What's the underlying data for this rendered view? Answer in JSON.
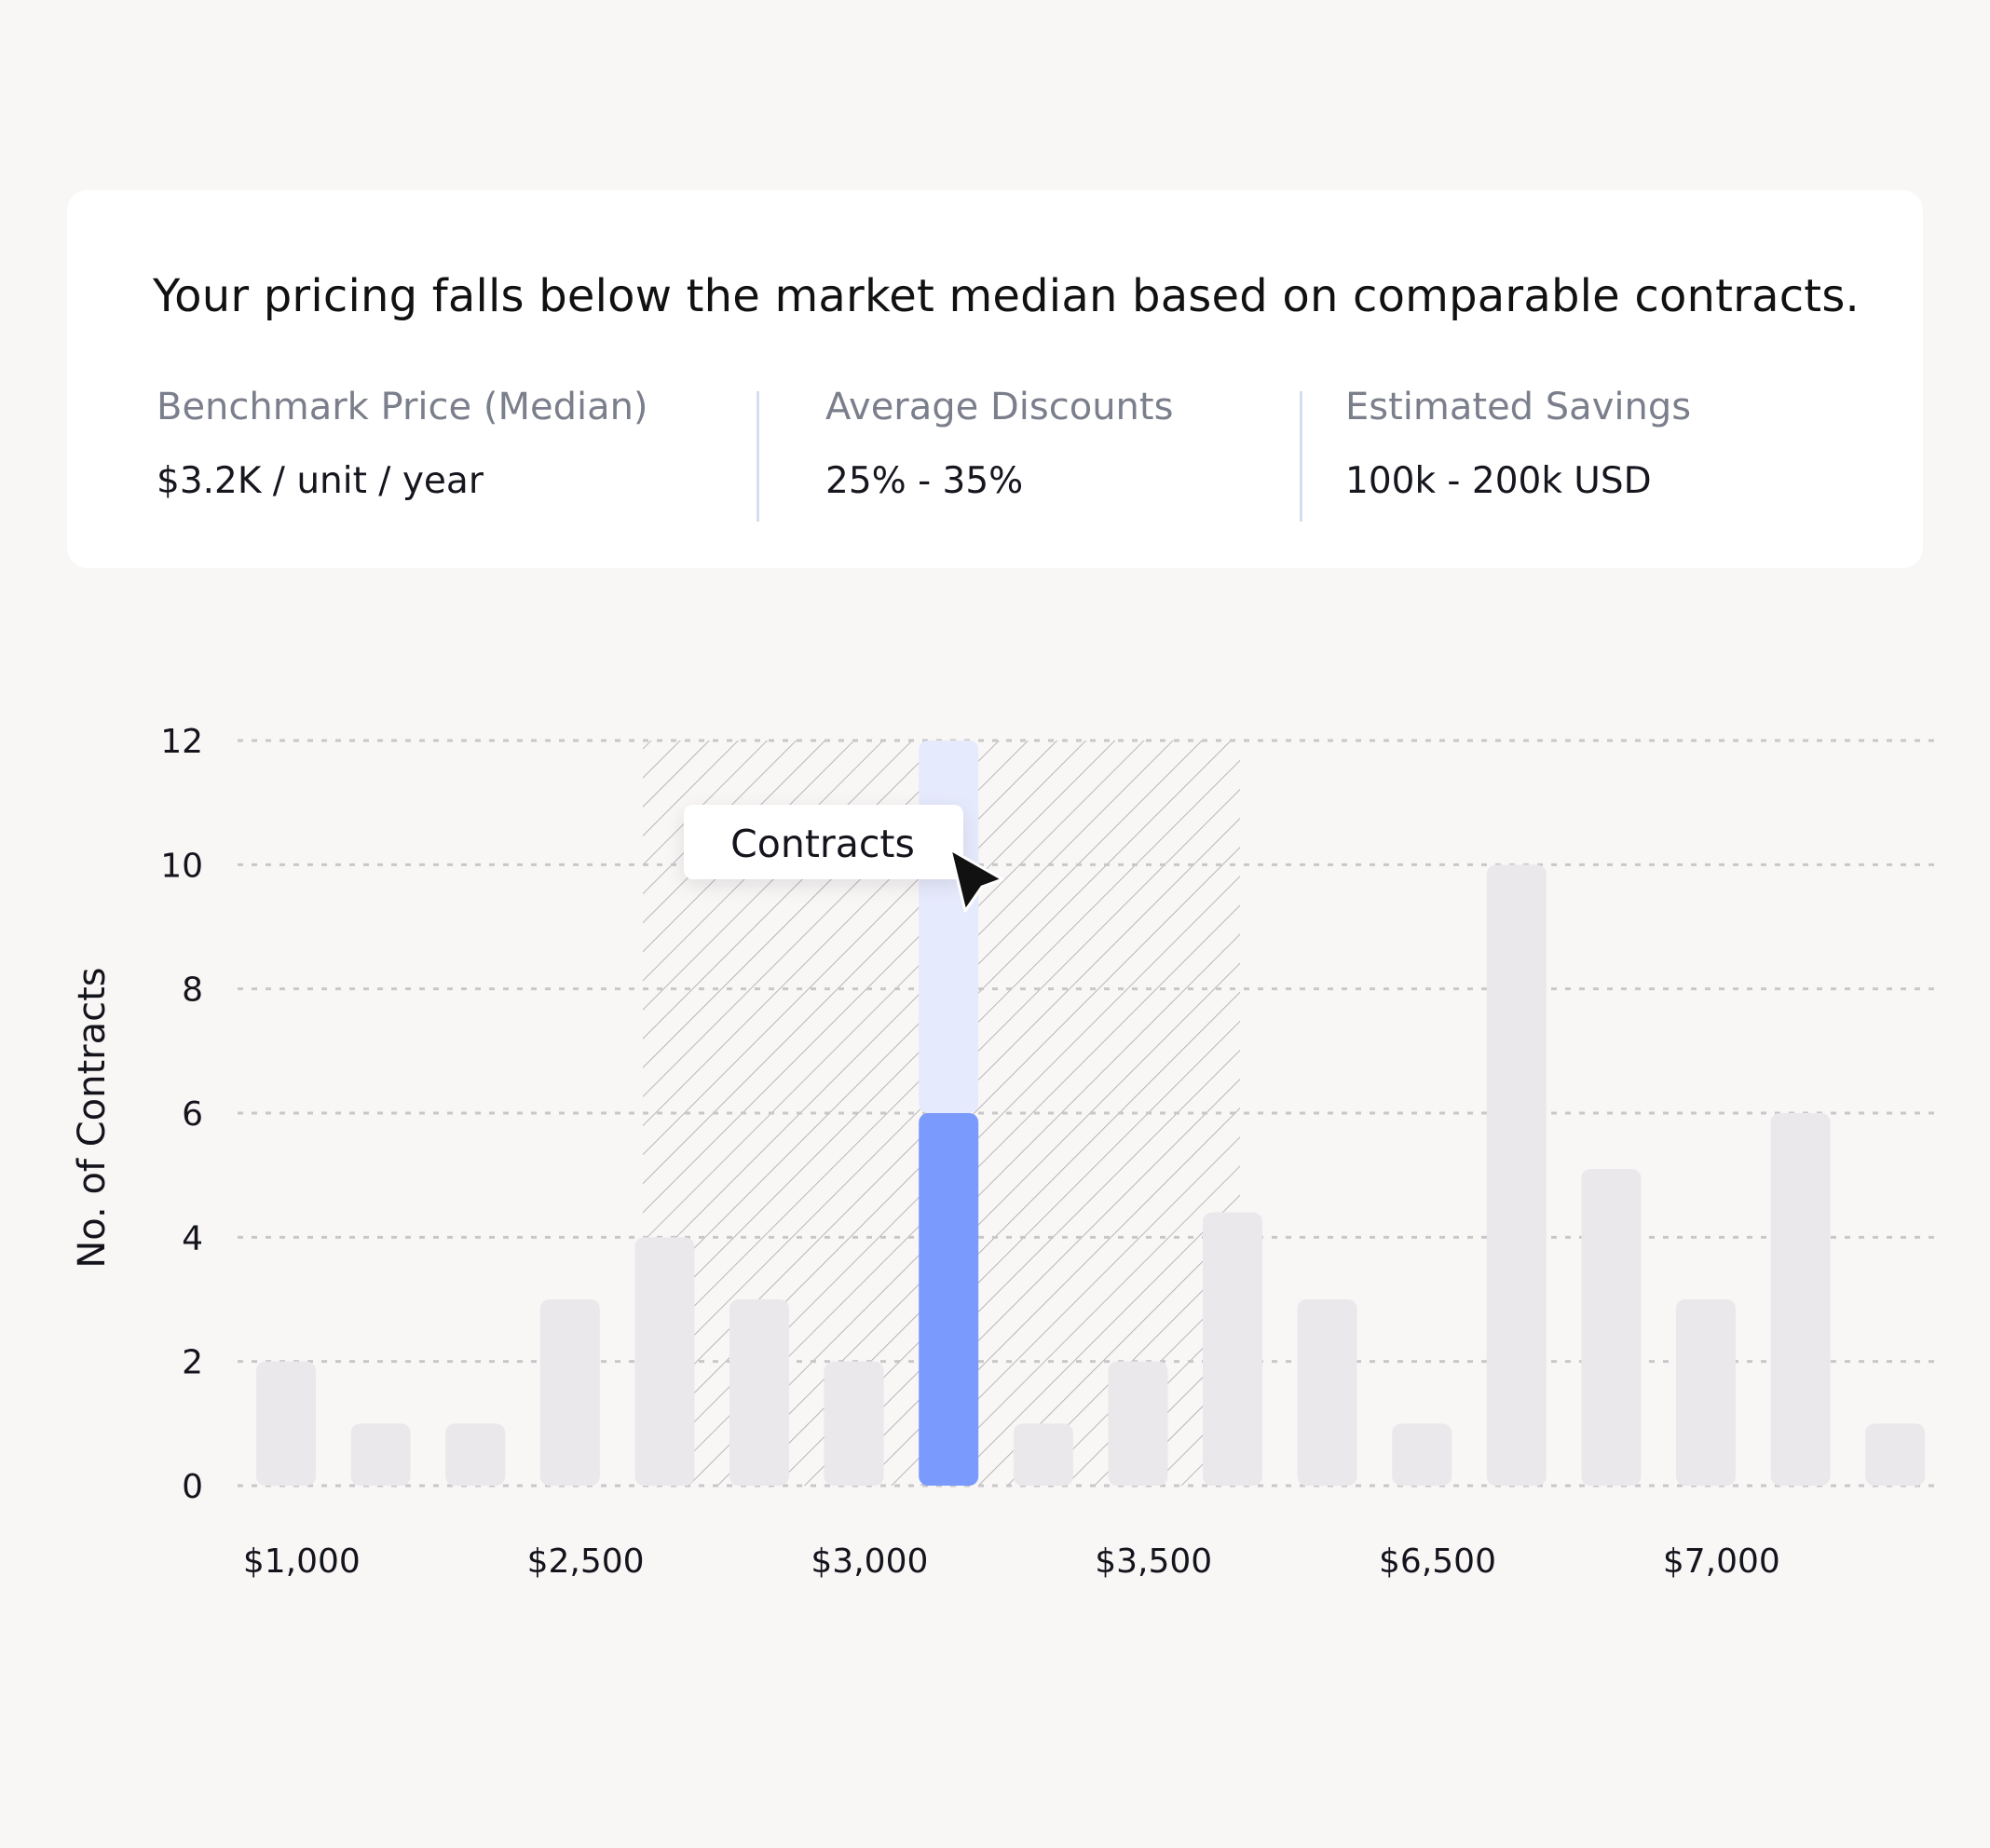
{
  "summary": {
    "headline": "Your pricing falls below the market median based on comparable contracts.",
    "stats": [
      {
        "label": "Benchmark Price (Median)",
        "value": "$3.2K / unit / year"
      },
      {
        "label": "Average Discounts",
        "value": "25% - 35%"
      },
      {
        "label": "Estimated Savings",
        "value": "100k - 200k USD"
      }
    ]
  },
  "tooltip": {
    "label": "Contracts"
  },
  "colors": {
    "background": "#f9f6f6",
    "bar": "#eae8ea",
    "highlight": "#7a9bfd",
    "highlight_range": "#e6eafd",
    "hatch": "#a8a6a8",
    "grid": "#c9c7c9"
  },
  "chart_data": {
    "type": "bar",
    "title": "",
    "xlabel": "",
    "ylabel": "No. of Contracts",
    "ylim": [
      0,
      12
    ],
    "yticks": [
      0,
      2,
      4,
      6,
      8,
      10,
      12
    ],
    "xtick_labels": [
      "$1,000",
      "$2,500",
      "$3,000",
      "$3,500",
      "$6,500",
      "$7,000"
    ],
    "values": [
      2,
      1,
      1,
      3,
      4,
      3,
      2,
      6,
      1,
      2,
      4.4,
      3,
      1,
      10,
      5.1,
      3,
      6,
      1
    ],
    "highlight_index": 7,
    "highlight_range": [
      6,
      12
    ],
    "hatched_band": "bars 5–10",
    "grid": "dashed horizontal"
  }
}
